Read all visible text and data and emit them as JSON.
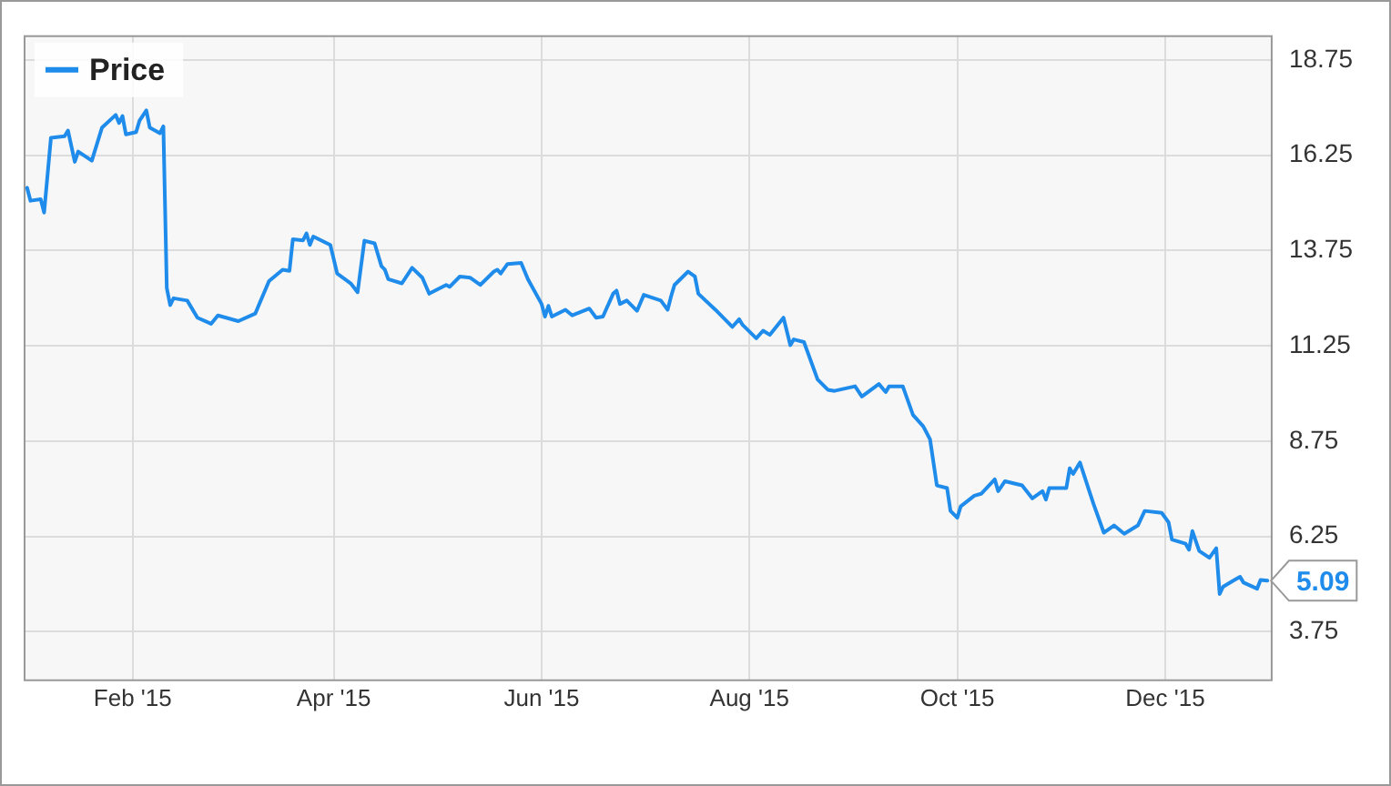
{
  "chart_data": {
    "type": "line",
    "x": [
      "2015-01-01",
      "2015-01-02",
      "2015-01-05",
      "2015-01-06",
      "2015-01-08",
      "2015-01-12",
      "2015-01-13",
      "2015-01-15",
      "2015-01-16",
      "2015-01-20",
      "2015-01-23",
      "2015-01-27",
      "2015-01-28",
      "2015-01-29",
      "2015-01-30",
      "2015-02-02",
      "2015-02-03",
      "2015-02-05",
      "2015-02-06",
      "2015-02-09",
      "2015-02-10",
      "2015-02-11",
      "2015-02-12",
      "2015-02-13",
      "2015-02-17",
      "2015-02-20",
      "2015-02-24",
      "2015-02-26",
      "2015-03-04",
      "2015-03-09",
      "2015-03-10",
      "2015-03-13",
      "2015-03-17",
      "2015-03-19",
      "2015-03-20",
      "2015-03-23",
      "2015-03-24",
      "2015-03-25",
      "2015-03-26",
      "2015-03-31",
      "2015-04-02",
      "2015-04-06",
      "2015-04-08",
      "2015-04-10",
      "2015-04-13",
      "2015-04-15",
      "2015-04-16",
      "2015-04-17",
      "2015-04-21",
      "2015-04-24",
      "2015-04-27",
      "2015-04-29",
      "2015-05-04",
      "2015-05-05",
      "2015-05-08",
      "2015-05-11",
      "2015-05-14",
      "2015-05-18",
      "2015-05-19",
      "2015-05-20",
      "2015-05-22",
      "2015-05-26",
      "2015-05-28",
      "2015-06-01",
      "2015-06-02",
      "2015-06-03",
      "2015-06-04",
      "2015-06-08",
      "2015-06-10",
      "2015-06-15",
      "2015-06-17",
      "2015-06-19",
      "2015-06-22",
      "2015-06-23",
      "2015-06-24",
      "2015-06-26",
      "2015-06-29",
      "2015-07-01",
      "2015-07-06",
      "2015-07-08",
      "2015-07-09",
      "2015-07-10",
      "2015-07-14",
      "2015-07-16",
      "2015-07-17",
      "2015-07-22",
      "2015-07-27",
      "2015-07-29",
      "2015-07-30",
      "2015-08-03",
      "2015-08-05",
      "2015-08-07",
      "2015-08-11",
      "2015-08-13",
      "2015-08-14",
      "2015-08-17",
      "2015-08-21",
      "2015-08-24",
      "2015-08-26",
      "2015-09-01",
      "2015-09-03",
      "2015-09-08",
      "2015-09-10",
      "2015-09-11",
      "2015-09-15",
      "2015-09-18",
      "2015-09-21",
      "2015-09-23",
      "2015-09-25",
      "2015-09-28",
      "2015-09-29",
      "2015-10-01",
      "2015-10-02",
      "2015-10-06",
      "2015-10-08",
      "2015-10-12",
      "2015-10-13",
      "2015-10-15",
      "2015-10-20",
      "2015-10-23",
      "2015-10-26",
      "2015-10-27",
      "2015-10-28",
      "2015-11-02",
      "2015-11-03",
      "2015-11-04",
      "2015-11-06",
      "2015-11-09",
      "2015-11-10",
      "2015-11-13",
      "2015-11-16",
      "2015-11-19",
      "2015-11-23",
      "2015-11-25",
      "2015-11-30",
      "2015-12-02",
      "2015-12-03",
      "2015-12-07",
      "2015-12-08",
      "2015-12-09",
      "2015-12-11",
      "2015-12-14",
      "2015-12-16",
      "2015-12-17",
      "2015-12-18",
      "2015-12-21",
      "2015-12-23",
      "2015-12-24",
      "2015-12-28",
      "2015-12-29",
      "2015-12-31"
    ],
    "series": [
      {
        "name": "Price",
        "color": "#1f8ceb",
        "values": [
          15.4,
          15.06,
          15.1,
          14.75,
          16.71,
          16.75,
          16.9,
          16.08,
          16.35,
          16.11,
          16.98,
          17.31,
          17.1,
          17.28,
          16.8,
          16.86,
          17.16,
          17.43,
          16.98,
          16.83,
          17.01,
          12.77,
          12.32,
          12.5,
          12.44,
          11.99,
          11.83,
          12.05,
          11.9,
          12.1,
          12.32,
          12.95,
          13.25,
          13.22,
          14.05,
          14.02,
          14.2,
          13.9,
          14.12,
          13.9,
          13.15,
          12.89,
          12.66,
          14.01,
          13.94,
          13.34,
          13.25,
          13.0,
          12.89,
          13.3,
          13.04,
          12.62,
          12.85,
          12.8,
          13.07,
          13.04,
          12.85,
          13.2,
          13.25,
          13.15,
          13.4,
          13.43,
          13.0,
          12.35,
          12.02,
          12.3,
          12.02,
          12.2,
          12.05,
          12.23,
          11.99,
          12.02,
          12.62,
          12.7,
          12.35,
          12.44,
          12.17,
          12.59,
          12.44,
          12.2,
          12.55,
          12.85,
          13.2,
          13.07,
          12.62,
          12.2,
          11.75,
          11.95,
          11.8,
          11.45,
          11.65,
          11.54,
          11.99,
          11.27,
          11.42,
          11.35,
          10.37,
          10.1,
          10.07,
          10.19,
          9.92,
          10.25,
          10.04,
          10.19,
          10.19,
          9.44,
          9.14,
          8.8,
          7.59,
          7.52,
          6.92,
          6.74,
          7.04,
          7.32,
          7.37,
          7.75,
          7.44,
          7.7,
          7.59,
          7.25,
          7.44,
          7.22,
          7.52,
          7.52,
          8.04,
          7.89,
          8.19,
          7.37,
          7.1,
          6.35,
          6.54,
          6.32,
          6.54,
          6.92,
          6.87,
          6.62,
          6.17,
          6.06,
          5.9,
          6.39,
          5.87,
          5.69,
          5.94,
          4.74,
          4.93,
          5.09,
          5.19,
          5.04,
          4.88,
          5.11,
          5.09
        ]
      }
    ],
    "xlim": [
      "2014-12-31",
      "2016-01-01"
    ],
    "xticks": [
      {
        "value": "2015-02-01",
        "label": "Feb '15"
      },
      {
        "value": "2015-04-01",
        "label": "Apr '15"
      },
      {
        "value": "2015-06-01",
        "label": "Jun '15"
      },
      {
        "value": "2015-08-01",
        "label": "Aug '15"
      },
      {
        "value": "2015-10-01",
        "label": "Oct '15"
      },
      {
        "value": "2015-12-01",
        "label": "Dec '15"
      }
    ],
    "ylim": [
      2.5,
      19.4
    ],
    "yticks": [
      3.75,
      6.25,
      8.75,
      11.25,
      13.75,
      16.25,
      18.75
    ],
    "annotations": [
      {
        "text": "5.09",
        "x": "2015-12-31",
        "y": 5.09
      }
    ],
    "grid": true,
    "legend": "top left",
    "marker": "none",
    "line_style": "solid"
  }
}
